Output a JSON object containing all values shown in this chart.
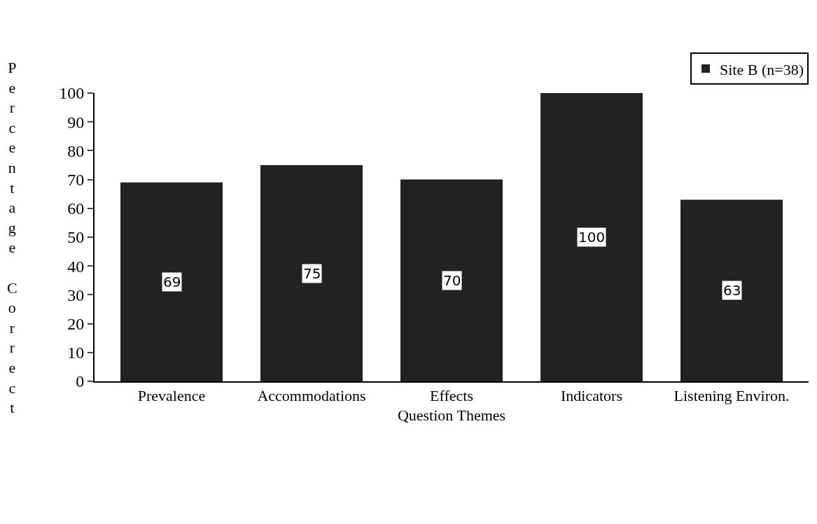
{
  "chart_data": {
    "type": "bar",
    "xlabel": "Question Themes",
    "ylabel": "Percentage Correct",
    "categories": [
      "Prevalence",
      "Accommodations",
      "Effects",
      "Indicators",
      "Listening Environ."
    ],
    "series": [
      {
        "name": "Site B (n=38)",
        "color": "#222222",
        "values": [
          69,
          75,
          70,
          100,
          63
        ]
      }
    ],
    "ylim": [
      0,
      100
    ],
    "yticks": [
      0,
      10,
      20,
      30,
      40,
      50,
      60,
      70,
      80,
      90,
      100
    ],
    "grid": false,
    "legend": "top right",
    "data_labels": true
  }
}
